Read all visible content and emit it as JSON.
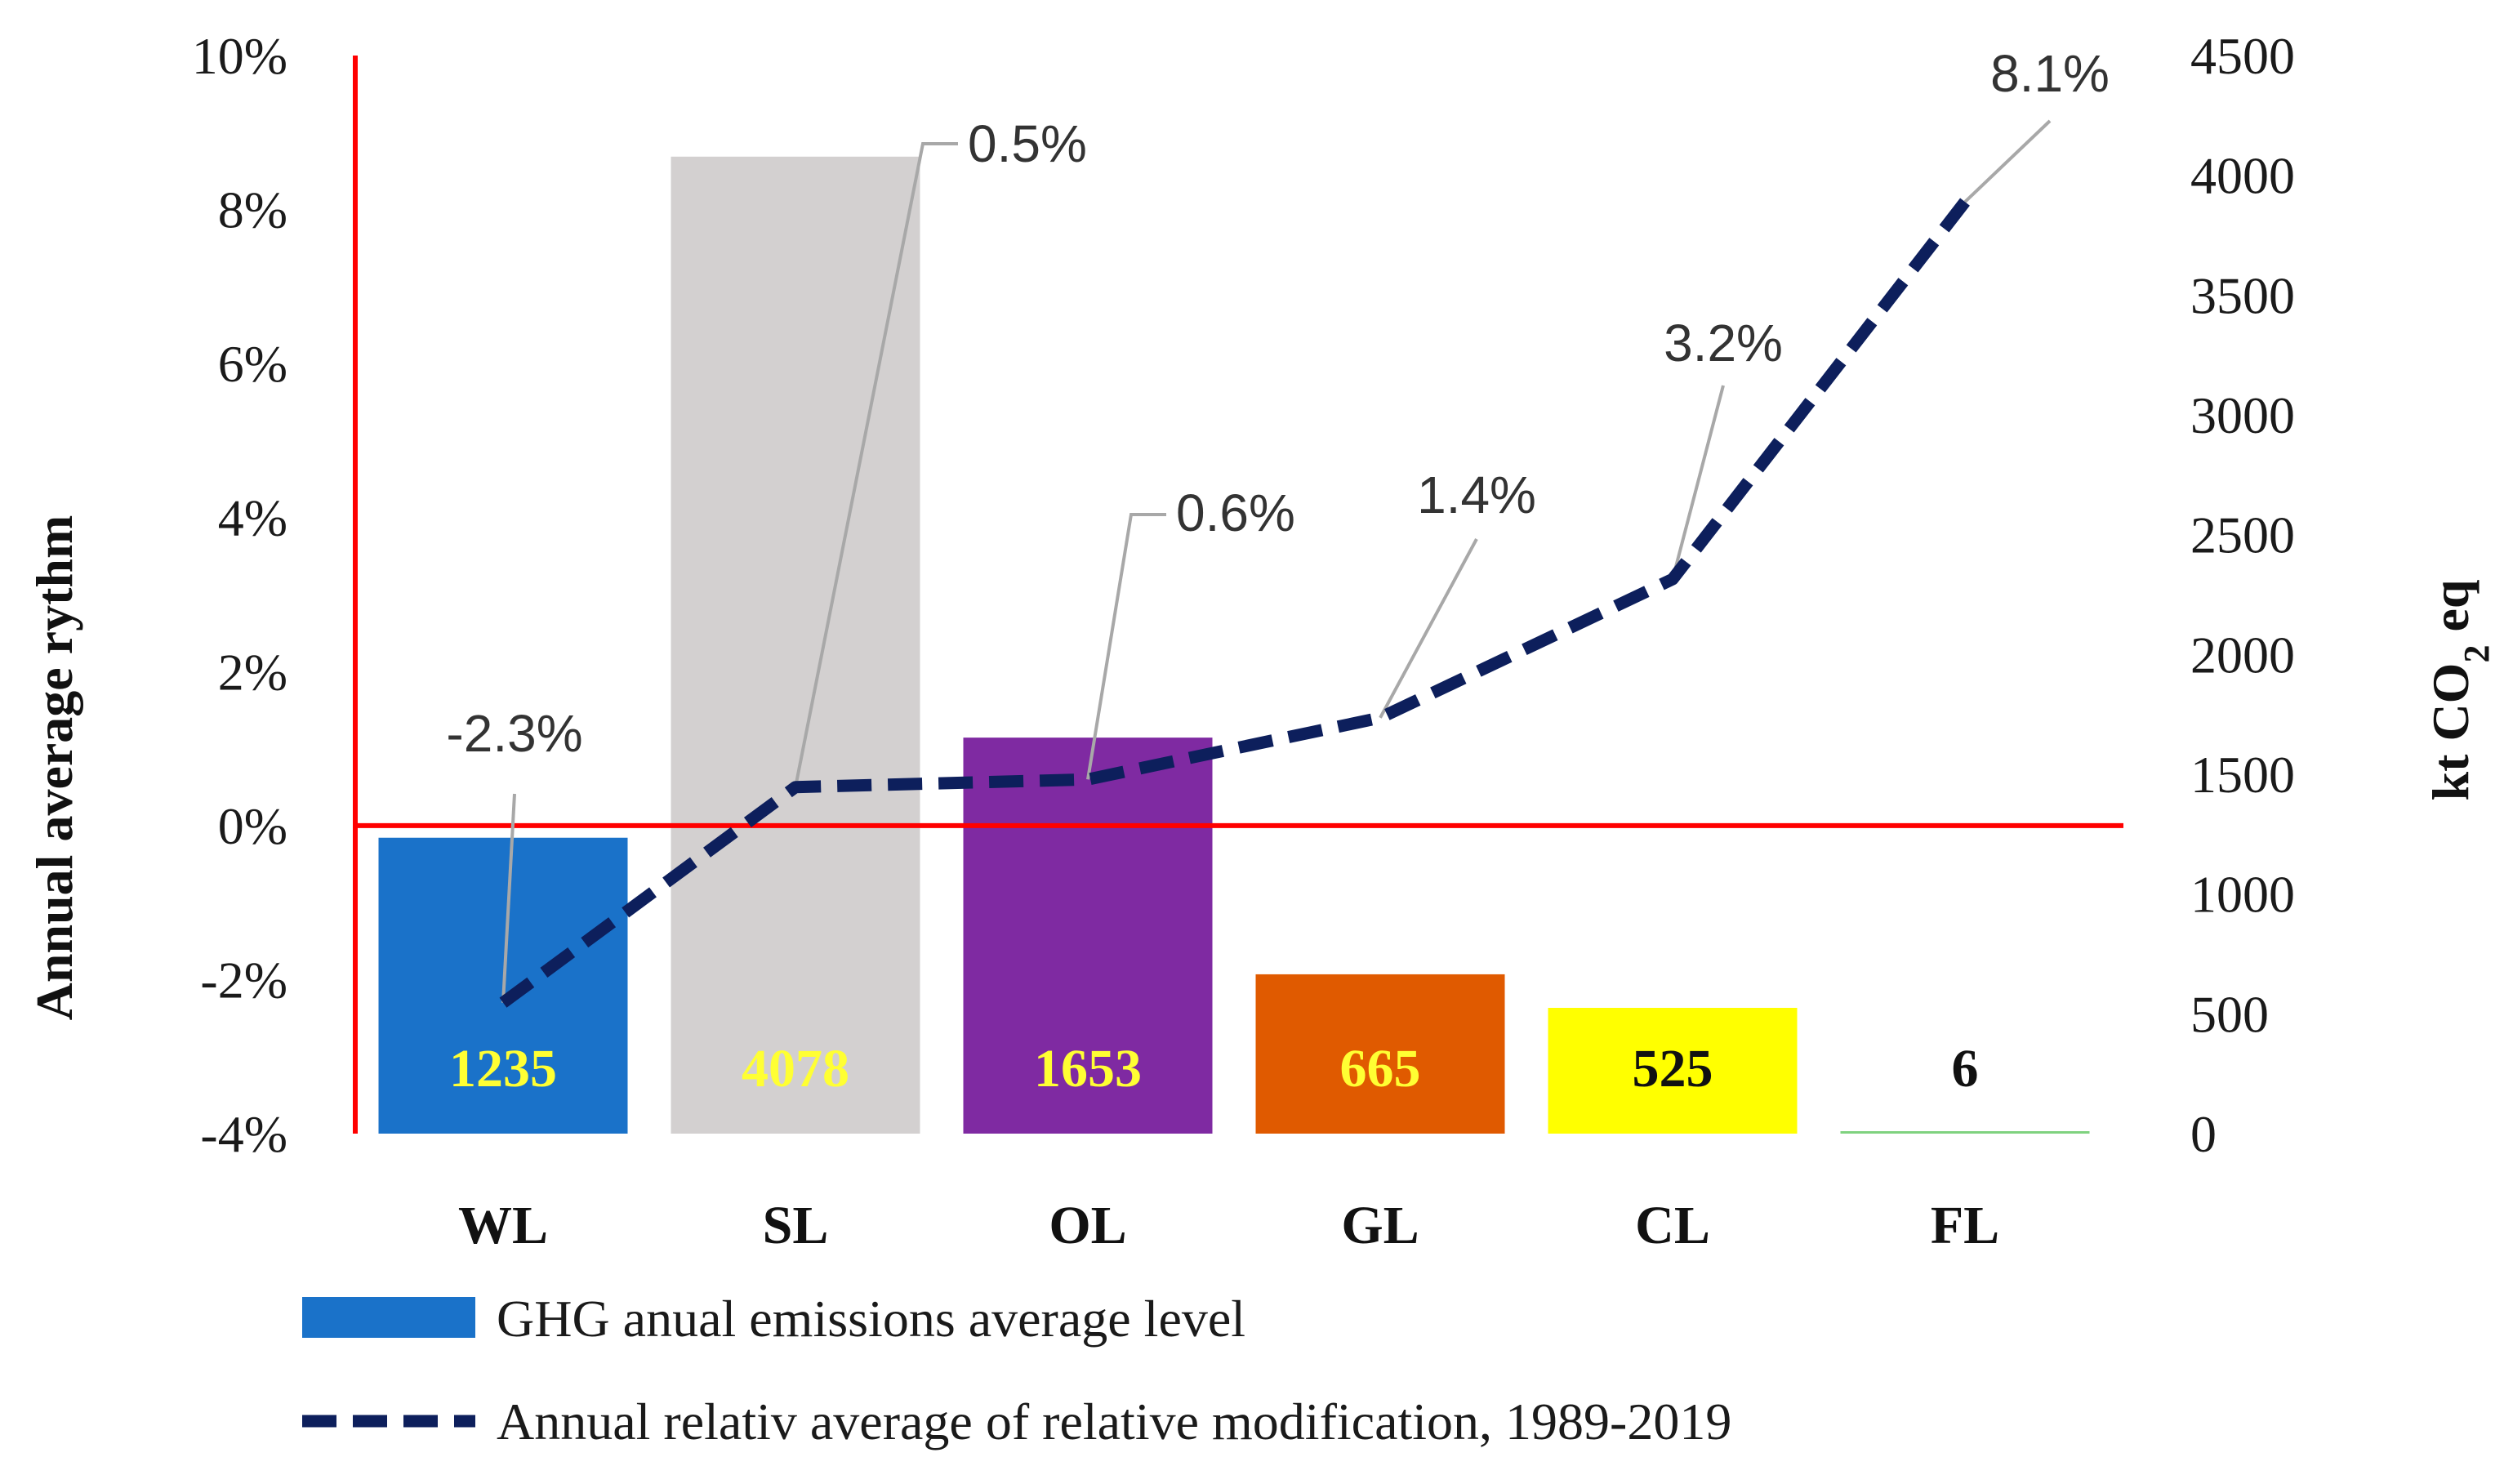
{
  "chart_data": {
    "type": "bar",
    "categories": [
      "WL",
      "SL",
      "OL",
      "GL",
      "CL",
      "FL"
    ],
    "series": [
      {
        "name": "GHG anual emissions average level",
        "type": "bar",
        "axis": "right",
        "values": [
          1235,
          4078,
          1653,
          665,
          525,
          6
        ],
        "labels": [
          "1235",
          "4078",
          "1653",
          "665",
          "525",
          "6"
        ],
        "colors": [
          "#1a72c9",
          "#d3d0d0",
          "#7f2aa2",
          "#e05a00",
          "#ffff00",
          "#7fd27f"
        ],
        "label_colors": [
          "#ffff33",
          "#ffff33",
          "#ffff33",
          "#ffff33",
          "#111111",
          "#111111"
        ]
      },
      {
        "name": "Annual relativ average of relative modification, 1989-2019",
        "type": "line",
        "axis": "left",
        "values": [
          -2.3,
          0.5,
          0.6,
          1.4,
          3.2,
          8.1
        ],
        "labels": [
          "-2.3%",
          "0.5%",
          "0.6%",
          "1.4%",
          "3.2%",
          "8.1%"
        ],
        "color": "#0d1f5c",
        "dash": "dashed"
      }
    ],
    "left_axis": {
      "title": "Annual average rythm",
      "ylim": [
        -4,
        10
      ],
      "ticks": [
        "10%",
        "8%",
        "6%",
        "4%",
        "2%",
        "0%",
        "-2%",
        "-4%"
      ]
    },
    "right_axis": {
      "title_parts": [
        "kt CO",
        "2",
        " eq"
      ],
      "ylim": [
        0,
        4500
      ],
      "ticks": [
        "4500",
        "4000",
        "3500",
        "3000",
        "2500",
        "2000",
        "1500",
        "1000",
        "500",
        "0"
      ]
    },
    "legend": {
      "position": "bottom",
      "entries": [
        "GHG anual emissions average level",
        "Annual relativ average of relative modification, 1989-2019"
      ]
    },
    "reference_line_color": "#ff0000"
  }
}
